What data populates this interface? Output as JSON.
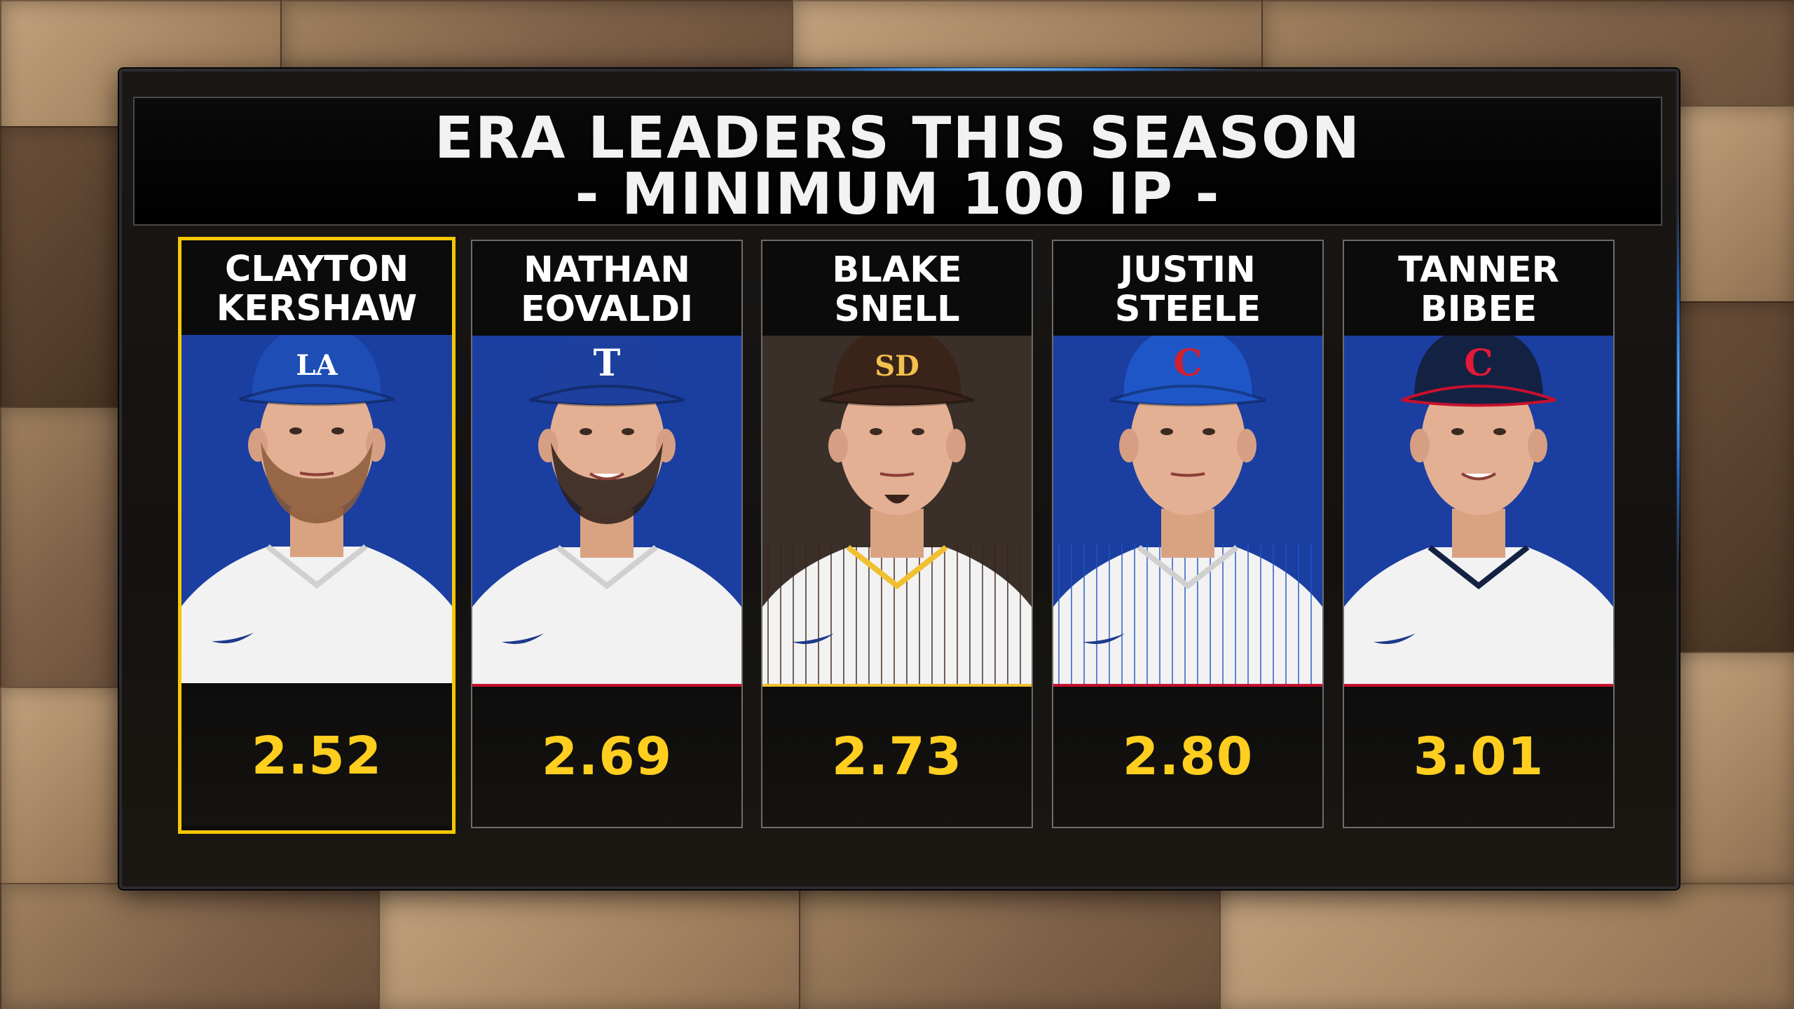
{
  "title": {
    "line1": "ERA LEADERS THIS SEASON",
    "line2": "- MINIMUM 100 IP -"
  },
  "players": [
    {
      "first": "CLAYTON",
      "last": "KERSHAW",
      "era": "2.52",
      "team_icon": "dodgers-logo-icon",
      "bg": "#1b3ea1",
      "cap": "#1d4db5",
      "logo": "LA",
      "logo_color": "#ffffff",
      "highlight": true,
      "stripe": "#0b0b0b"
    },
    {
      "first": "NATHAN",
      "last": "EOVALDI",
      "era": "2.69",
      "team_icon": "rangers-logo-icon",
      "bg": "#1b3ea1",
      "cap": "#1d3f9e",
      "logo": "T",
      "logo_color": "#ffffff",
      "highlight": false,
      "stripe": "#c8102e"
    },
    {
      "first": "BLAKE",
      "last": "SNELL",
      "era": "2.73",
      "team_icon": "padres-logo-icon",
      "bg": "#3a2f29",
      "cap": "#3a241a",
      "logo": "SD",
      "logo_color": "#f2c14e",
      "highlight": false,
      "stripe": "#f0c030"
    },
    {
      "first": "JUSTIN",
      "last": "STEELE",
      "era": "2.80",
      "team_icon": "cubs-logo-icon",
      "bg": "#1b3ea1",
      "cap": "#1f56c7",
      "logo": "C",
      "logo_color": "#d2202f",
      "highlight": false,
      "stripe": "#c8102e"
    },
    {
      "first": "TANNER",
      "last": "BIBEE",
      "era": "3.01",
      "team_icon": "guardians-logo-icon",
      "bg": "#1b3ea1",
      "cap": "#132142",
      "logo": "C",
      "logo_color": "#e31937",
      "highlight": false,
      "stripe": "#c8102e"
    }
  ]
}
